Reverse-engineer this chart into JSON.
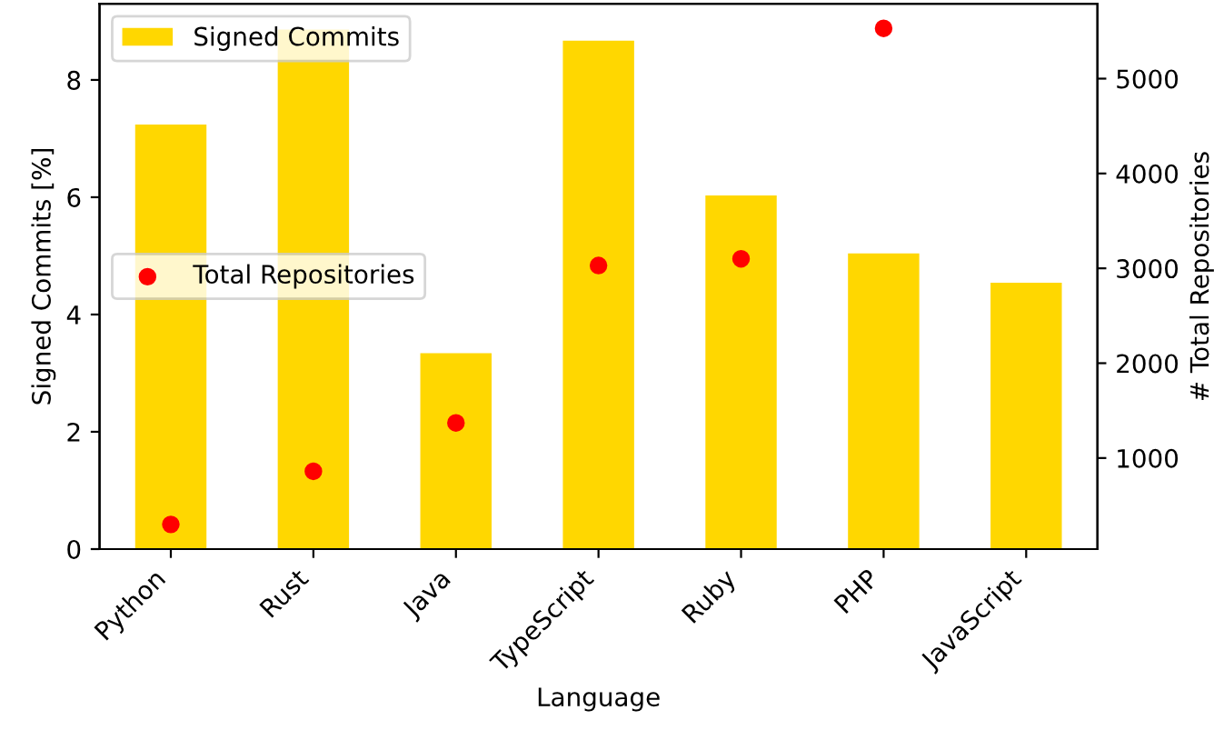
{
  "chart_data": {
    "type": "bar",
    "xlabel": "Language",
    "ylabel": "Signed Commits [%]",
    "y2label": "# Total Repositories",
    "categories": [
      "Python",
      "Rust",
      "Java",
      "TypeScript",
      "Ruby",
      "PHP",
      "JavaScript"
    ],
    "series": [
      {
        "name": "Signed Commits",
        "color": "#ffd700",
        "values": [
          7.24,
          8.86,
          3.34,
          8.67,
          6.03,
          5.04,
          4.54
        ]
      },
      {
        "name": "Total Repositories",
        "type": "scatter",
        "axis": "y2",
        "color": "#ff0000",
        "marker": "circle",
        "values": [
          300,
          860,
          1370,
          3030,
          3100,
          5530,
          null
        ]
      }
    ],
    "ylim": [
      0,
      9.3
    ],
    "yticks": [
      0,
      2,
      4,
      6,
      8
    ],
    "y2lim": [
      40,
      5790
    ],
    "y2ticks": [
      1000,
      2000,
      3000,
      4000,
      5000
    ],
    "legend": "top left",
    "grid": false
  }
}
